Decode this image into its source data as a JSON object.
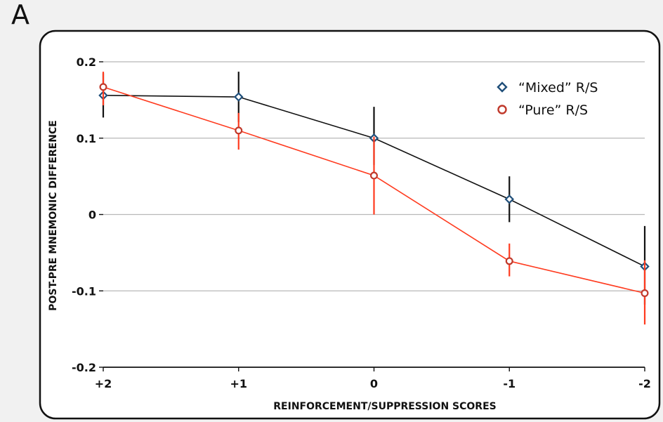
{
  "panel_label": "A",
  "chart_data": {
    "type": "line",
    "title": "",
    "xlabel": "REINFORCEMENT/SUPPRESSION SCORES",
    "ylabel": "POST-PRE MNEMONIC DIFFERENCE",
    "categories": [
      "+2",
      "+1",
      "0",
      "-1",
      "-2"
    ],
    "ylim": [
      -0.2,
      0.2
    ],
    "yticks": [
      0.2,
      0.1,
      0,
      -0.1,
      -0.2
    ],
    "ytick_labels": [
      "0.2",
      "0.1",
      "0",
      "-0.1",
      "-0.2"
    ],
    "grid": true,
    "legend_position": "top-right",
    "series": [
      {
        "name": "“Mixed” R/S",
        "marker": "diamond",
        "color": "#1f4e79",
        "line_color": "#111111",
        "values": [
          0.156,
          0.154,
          0.1,
          0.02,
          -0.068
        ],
        "error_low": [
          0.127,
          0.121,
          0.065,
          -0.01,
          -0.118
        ],
        "error_high": [
          0.185,
          0.187,
          0.141,
          0.05,
          -0.015
        ]
      },
      {
        "name": "“Pure” R/S",
        "marker": "circle",
        "color": "#c0392b",
        "line_color": "#ff3b1f",
        "values": [
          0.167,
          0.11,
          0.051,
          -0.061,
          -0.103
        ],
        "error_low": [
          0.143,
          0.085,
          0.0,
          -0.081,
          -0.144
        ],
        "error_high": [
          0.187,
          0.133,
          0.102,
          -0.038,
          -0.06
        ]
      }
    ]
  }
}
